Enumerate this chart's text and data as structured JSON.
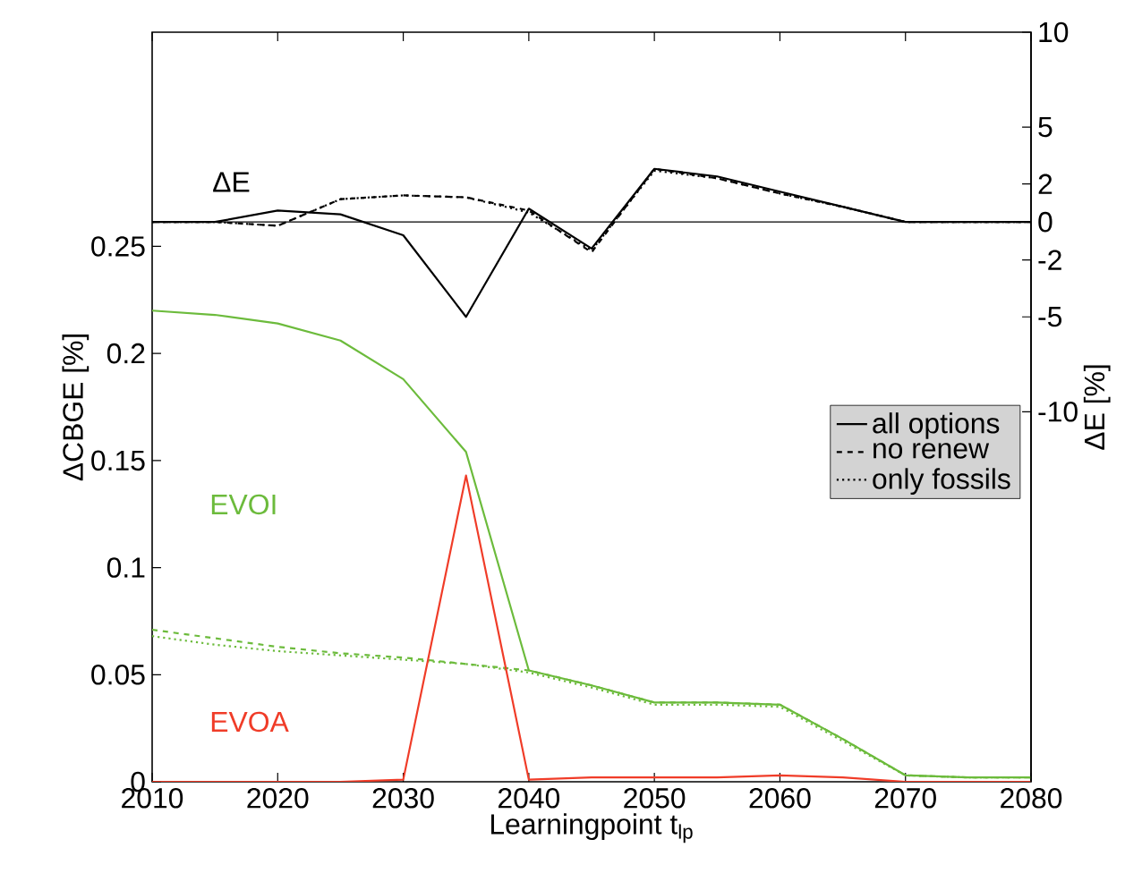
{
  "chart_data": {
    "type": "line",
    "xlabel": "Learningpoint t$_{lp}$",
    "ylabel": "ΔCBGE [%]",
    "y2label": "ΔE [%]",
    "x": [
      2010,
      2015,
      2020,
      2025,
      2030,
      2035,
      2040,
      2045,
      2050,
      2055,
      2060,
      2065,
      2070,
      2075,
      2080
    ],
    "xlim": [
      2010,
      2080
    ],
    "xticks": [
      2010,
      2020,
      2030,
      2040,
      2050,
      2060,
      2070,
      2080
    ],
    "ylim": [
      0,
      0.35
    ],
    "yticks": [
      0,
      0.05,
      0.1,
      0.15,
      0.2,
      0.25
    ],
    "y2lim": [
      -29.5,
      10
    ],
    "y2ticks": [
      -10,
      -5,
      -2,
      0,
      2,
      5,
      10
    ],
    "series": [
      {
        "color": "#6cbb3c",
        "line_style": "solid",
        "values": [
          0.22,
          0.218,
          0.214,
          0.206,
          0.188,
          0.154,
          0.052,
          0.045,
          0.037,
          0.037,
          0.036,
          0.02,
          0.003,
          0.002,
          0.002
        ]
      },
      {
        "color": "#6cbb3c",
        "line_style": "dashed",
        "values": [
          0.071,
          0.067,
          0.063,
          0.06,
          0.058,
          0.055,
          0.052,
          0.045,
          0.037,
          0.037,
          0.036,
          0.02,
          0.003,
          0.002,
          0.002
        ]
      },
      {
        "color": "#6cbb3c",
        "line_style": "dotted",
        "values": [
          0.068,
          0.064,
          0.061,
          0.059,
          0.057,
          0.055,
          0.051,
          0.044,
          0.036,
          0.036,
          0.035,
          0.019,
          0.003,
          0.002,
          0.002
        ]
      },
      {
        "color": "#f03c28",
        "line_style": "solid",
        "values": [
          0,
          0,
          0,
          0,
          0.001,
          0.143,
          0.001,
          0.002,
          0.002,
          0.002,
          0.003,
          0.002,
          0,
          0,
          0
        ]
      },
      {
        "name": "all options",
        "color": "#000000",
        "line_style": "solid",
        "axis": "y2",
        "values": [
          0,
          0,
          0.6,
          0.4,
          -0.7,
          -5.0,
          0.7,
          -1.4,
          2.8,
          2.4,
          1.6,
          0.8,
          0,
          0,
          0
        ]
      },
      {
        "name": "no renew",
        "color": "#000000",
        "line_style": "dashed",
        "axis": "y2",
        "values": [
          0,
          0,
          -0.2,
          1.2,
          1.4,
          1.3,
          0.6,
          -1.6,
          2.8,
          2.3,
          1.5,
          0.8,
          0,
          0,
          0
        ]
      },
      {
        "name": "only fossils",
        "color": "#000000",
        "line_style": "dotted",
        "axis": "y2",
        "values": [
          0,
          0,
          -0.2,
          1.2,
          1.4,
          1.3,
          0.5,
          -1.5,
          2.7,
          2.3,
          1.5,
          0.8,
          0,
          0,
          0
        ]
      }
    ],
    "ref_lines": [
      {
        "axis": "y2",
        "value": 0,
        "color": "#000000"
      }
    ],
    "annotations": [
      "ΔE",
      "EVOI",
      "EVOA"
    ],
    "legend": "right"
  }
}
